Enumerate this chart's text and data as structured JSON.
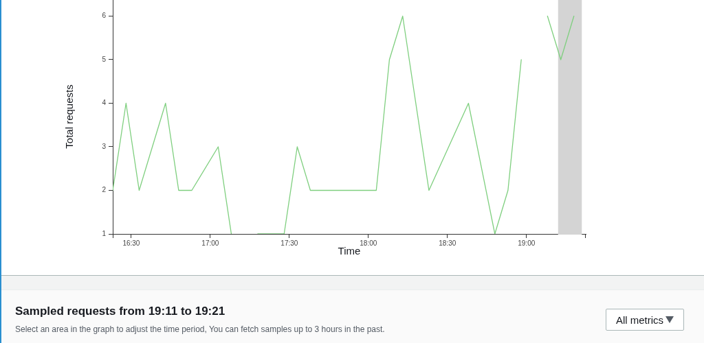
{
  "chart_data": {
    "type": "line",
    "xlabel": "Time",
    "ylabel": "Total requests",
    "x": [
      16.383,
      16.467,
      16.55,
      16.717,
      16.8,
      16.883,
      17.05,
      17.133,
      17.217,
      17.3,
      17.467,
      17.55,
      17.633,
      18.05,
      18.133,
      18.217,
      18.383,
      18.633,
      18.8,
      18.883,
      18.967,
      19.05,
      19.133,
      19.217,
      19.3
    ],
    "series": [
      {
        "color": "#7fcf7f",
        "values": [
          2,
          4,
          2,
          4,
          2,
          2,
          3,
          1,
          null,
          1,
          1,
          3,
          2,
          2,
          5,
          6,
          2,
          4,
          1,
          2,
          5,
          null,
          6,
          5,
          6
        ]
      }
    ],
    "xlim": [
      16.383,
      19.375
    ],
    "xticks": [
      {
        "value": 16.5,
        "label": "16:30"
      },
      {
        "value": 17,
        "label": "17:00"
      },
      {
        "value": 17.5,
        "label": "17:30"
      },
      {
        "value": 18,
        "label": "18:00"
      },
      {
        "value": 18.5,
        "label": "18:30"
      },
      {
        "value": 19,
        "label": "19:00"
      }
    ],
    "ylim": [
      1,
      6.37
    ],
    "yticks": [
      1,
      2,
      3,
      4,
      5,
      6
    ],
    "bands": [
      {
        "axis": "x",
        "from": 19.2,
        "to": 19.35,
        "color": "#d4d4d4"
      }
    ],
    "marker": "none",
    "line_style": "solid",
    "legend": false,
    "grid": false,
    "annotations": [
      "Sampled requests from 19:11 to 19:21",
      "Select an area in the graph to adjust the time period, You can fetch samples up to 3 hours in the past.",
      "All metrics"
    ]
  }
}
